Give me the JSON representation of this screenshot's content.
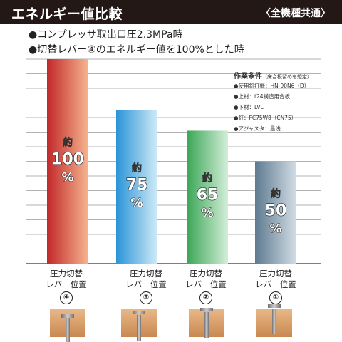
{
  "header": {
    "title": "エネルギー値比較",
    "scope": "〈全機種共通〉"
  },
  "notes": [
    "●コンプレッサ取出口圧2.3MPa時",
    "●切替レバー④のエネルギー値を100%とした時"
  ],
  "conditions": {
    "title": "作業条件",
    "subtitle": "（床合板留めを想定）",
    "items": [
      "●使用釘打機：HN-90N6（D）",
      "●上材：t24構造用合板",
      "●下材：LVL",
      "●釘：FC75W8（CN75）",
      "●アジャスタ：最浅"
    ]
  },
  "chart_data": {
    "type": "bar",
    "categories": [
      "④",
      "③",
      "②",
      "①"
    ],
    "category_labels": [
      {
        "line1": "圧力切替",
        "line2": "レバー位置",
        "num": "④"
      },
      {
        "line1": "圧力切替",
        "line2": "レバー位置",
        "num": "③"
      },
      {
        "line1": "圧力切替",
        "line2": "レバー位置",
        "num": "②"
      },
      {
        "line1": "圧力切替",
        "line2": "レバー位置",
        "num": "①"
      }
    ],
    "values": [
      100,
      75,
      65,
      50
    ],
    "data_labels": [
      {
        "prefix": "約",
        "value": "100",
        "unit": "%"
      },
      {
        "prefix": "約",
        "value": "75",
        "unit": "%"
      },
      {
        "prefix": "約",
        "value": "65",
        "unit": "%"
      },
      {
        "prefix": "約",
        "value": "50",
        "unit": "%"
      }
    ],
    "ylim": [
      0,
      100
    ],
    "grid": true,
    "colors": {
      "bar1": [
        "#c2282a",
        "#f5b58f"
      ],
      "bar2": [
        "#2a94d8",
        "#cfeaf7"
      ],
      "bar3": [
        "#3aa655",
        "#d4eed9"
      ],
      "bar4": [
        "#5e7a90",
        "#d2dde5"
      ]
    }
  }
}
